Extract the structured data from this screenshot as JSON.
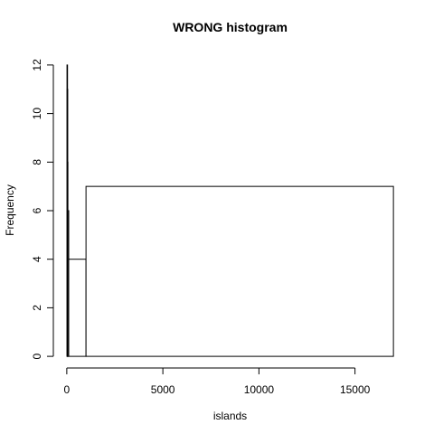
{
  "chart_data": {
    "type": "bar",
    "title": "WRONG histogram",
    "xlabel": "islands",
    "ylabel": "Frequency",
    "bins": [
      {
        "start": 10,
        "end": 20,
        "count": 12
      },
      {
        "start": 20,
        "end": 30,
        "count": 11
      },
      {
        "start": 30,
        "end": 50,
        "count": 8
      },
      {
        "start": 50,
        "end": 100,
        "count": 6
      },
      {
        "start": 100,
        "end": 1000,
        "count": 4
      },
      {
        "start": 1000,
        "end": 17000,
        "count": 7
      }
    ],
    "x_ticks": [
      0,
      5000,
      10000,
      15000
    ],
    "x_tick_labels": [
      "0",
      "5000",
      "10000",
      "15000"
    ],
    "y_ticks": [
      0,
      2,
      4,
      6,
      8,
      10,
      12
    ],
    "y_tick_labels": [
      "0",
      "2",
      "4",
      "6",
      "8",
      "10",
      "12"
    ],
    "xlim": [
      -700,
      17700
    ],
    "ylim": [
      -0.48,
      12.48
    ],
    "grid": false,
    "colors": {
      "bar_fill": "#ffffff",
      "stroke": "#000000"
    }
  }
}
